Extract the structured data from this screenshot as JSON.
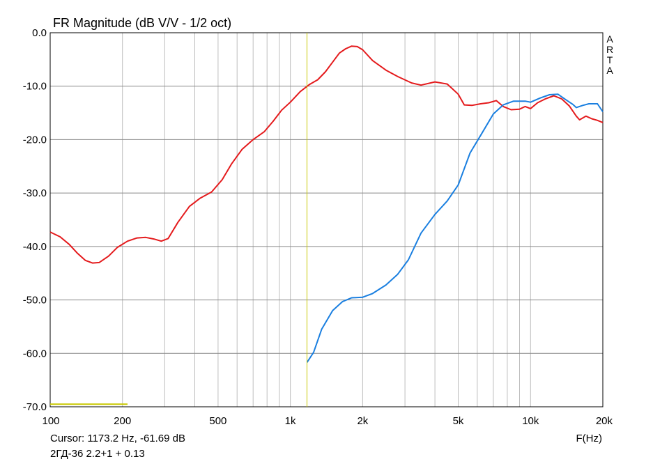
{
  "chart_data": {
    "type": "line",
    "title": "FR Magnitude (dB V/V - 1/2 oct)",
    "watermark": [
      "A",
      "R",
      "T",
      "A"
    ],
    "xlabel": "F(Hz)",
    "ylabel": "",
    "xscale": "log",
    "xlim": [
      100,
      20000
    ],
    "ylim": [
      -70,
      0
    ],
    "grid": true,
    "x_ticks": [
      {
        "value": 100,
        "label": "100"
      },
      {
        "value": 200,
        "label": "200"
      },
      {
        "value": 500,
        "label": "500"
      },
      {
        "value": 1000,
        "label": "1k"
      },
      {
        "value": 2000,
        "label": "2k"
      },
      {
        "value": 5000,
        "label": "5k"
      },
      {
        "value": 10000,
        "label": "10k"
      },
      {
        "value": 20000,
        "label": "20k"
      }
    ],
    "y_ticks": [
      {
        "value": 0,
        "label": "0.0"
      },
      {
        "value": -10,
        "label": "-10.0"
      },
      {
        "value": -20,
        "label": "-20.0"
      },
      {
        "value": -30,
        "label": "-30.0"
      },
      {
        "value": -40,
        "label": "-40.0"
      },
      {
        "value": -50,
        "label": "-50.0"
      },
      {
        "value": -60,
        "label": "-60.0"
      },
      {
        "value": -70,
        "label": "-70.0"
      }
    ],
    "cursor": {
      "x": 1173.2,
      "y": -61.69,
      "label": "Cursor: 1173.2 Hz, -61.69 dB",
      "color": "#c8c800"
    },
    "marker": {
      "x_start": 100,
      "x_end": 210,
      "y": -69.5,
      "color": "#c8c800"
    },
    "footer": "2ГД-36 2.2+1 + 0.13",
    "series": [
      {
        "color": "#e41a1c",
        "points": [
          [
            100,
            -37.3
          ],
          [
            110,
            -38.2
          ],
          [
            120,
            -39.6
          ],
          [
            130,
            -41.3
          ],
          [
            140,
            -42.6
          ],
          [
            150,
            -43.1
          ],
          [
            160,
            -43.0
          ],
          [
            175,
            -41.8
          ],
          [
            190,
            -40.2
          ],
          [
            210,
            -39.0
          ],
          [
            230,
            -38.4
          ],
          [
            250,
            -38.3
          ],
          [
            270,
            -38.6
          ],
          [
            290,
            -39.0
          ],
          [
            310,
            -38.5
          ],
          [
            340,
            -35.5
          ],
          [
            380,
            -32.5
          ],
          [
            420,
            -31.0
          ],
          [
            470,
            -29.8
          ],
          [
            520,
            -27.5
          ],
          [
            570,
            -24.5
          ],
          [
            630,
            -21.8
          ],
          [
            700,
            -20.0
          ],
          [
            780,
            -18.5
          ],
          [
            850,
            -16.5
          ],
          [
            920,
            -14.5
          ],
          [
            1000,
            -13.0
          ],
          [
            1100,
            -11.0
          ],
          [
            1200,
            -9.7
          ],
          [
            1300,
            -8.8
          ],
          [
            1400,
            -7.3
          ],
          [
            1500,
            -5.5
          ],
          [
            1600,
            -3.8
          ],
          [
            1700,
            -3.0
          ],
          [
            1800,
            -2.5
          ],
          [
            1900,
            -2.6
          ],
          [
            2000,
            -3.2
          ],
          [
            2200,
            -5.2
          ],
          [
            2500,
            -7.0
          ],
          [
            2800,
            -8.2
          ],
          [
            3200,
            -9.4
          ],
          [
            3500,
            -9.8
          ],
          [
            4000,
            -9.2
          ],
          [
            4500,
            -9.6
          ],
          [
            5000,
            -11.5
          ],
          [
            5300,
            -13.5
          ],
          [
            5700,
            -13.6
          ],
          [
            6200,
            -13.3
          ],
          [
            6700,
            -13.1
          ],
          [
            7200,
            -12.7
          ],
          [
            7700,
            -13.8
          ],
          [
            8300,
            -14.4
          ],
          [
            9000,
            -14.3
          ],
          [
            9500,
            -13.8
          ],
          [
            10000,
            -14.2
          ],
          [
            10700,
            -13.1
          ],
          [
            11500,
            -12.4
          ],
          [
            12500,
            -11.8
          ],
          [
            13500,
            -12.4
          ],
          [
            14500,
            -13.7
          ],
          [
            15500,
            -15.6
          ],
          [
            16000,
            -16.3
          ],
          [
            17000,
            -15.6
          ],
          [
            18000,
            -16.1
          ],
          [
            19000,
            -16.4
          ],
          [
            20000,
            -16.8
          ]
        ]
      },
      {
        "color": "#1a7fe0",
        "points": [
          [
            1173,
            -61.7
          ],
          [
            1250,
            -59.8
          ],
          [
            1350,
            -55.5
          ],
          [
            1500,
            -52.0
          ],
          [
            1650,
            -50.3
          ],
          [
            1800,
            -49.6
          ],
          [
            2000,
            -49.5
          ],
          [
            2200,
            -48.8
          ],
          [
            2500,
            -47.2
          ],
          [
            2800,
            -45.2
          ],
          [
            3100,
            -42.5
          ],
          [
            3500,
            -37.5
          ],
          [
            4000,
            -34.0
          ],
          [
            4500,
            -31.5
          ],
          [
            5000,
            -28.5
          ],
          [
            5600,
            -22.5
          ],
          [
            6200,
            -19.2
          ],
          [
            7000,
            -15.2
          ],
          [
            7700,
            -13.5
          ],
          [
            8500,
            -12.8
          ],
          [
            9500,
            -12.8
          ],
          [
            10000,
            -13.0
          ],
          [
            11000,
            -12.2
          ],
          [
            12000,
            -11.6
          ],
          [
            13000,
            -11.5
          ],
          [
            14000,
            -12.5
          ],
          [
            15000,
            -13.4
          ],
          [
            15500,
            -14.0
          ],
          [
            16500,
            -13.6
          ],
          [
            17500,
            -13.3
          ],
          [
            19000,
            -13.3
          ],
          [
            20000,
            -14.8
          ]
        ]
      }
    ]
  }
}
